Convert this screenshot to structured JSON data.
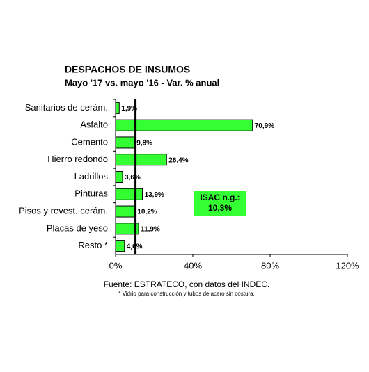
{
  "chart_data": {
    "type": "bar",
    "orientation": "horizontal",
    "title": "DESPACHOS DE INSUMOS",
    "subtitle": "Mayo '17 vs. mayo '16 - Var. % anual",
    "categories": [
      "Sanitarios de cerám.",
      "Asfalto",
      "Cemento",
      "Hierro redondo",
      "Ladrillos",
      "Pinturas",
      "Pisos y revest. cerám.",
      "Placas de yeso",
      "Resto *"
    ],
    "values": [
      1.9,
      70.9,
      9.8,
      26.4,
      3.6,
      13.9,
      10.2,
      11.9,
      4.6
    ],
    "value_labels": [
      "1,9%",
      "70,9%",
      "9,8%",
      "26,4%",
      "3,6%",
      "13,9%",
      "10,2%",
      "11,9%",
      "4,6%"
    ],
    "color": "#33ff33",
    "xlim": [
      0,
      120
    ],
    "xticks": [
      {
        "value": 0,
        "label": "0%"
      },
      {
        "value": 40,
        "label": "40%"
      },
      {
        "value": 80,
        "label": "80%"
      },
      {
        "value": 120,
        "label": "120%"
      }
    ],
    "reference_line": {
      "value": 10.3,
      "title": "ISAC n.g.:",
      "label": "10,3%",
      "color": "#33ff33"
    },
    "source": "Fuente: ESTRATECO, con datos del INDEC.",
    "footnote": "* Vidrio para construcción y tubos de acero sin costura."
  }
}
